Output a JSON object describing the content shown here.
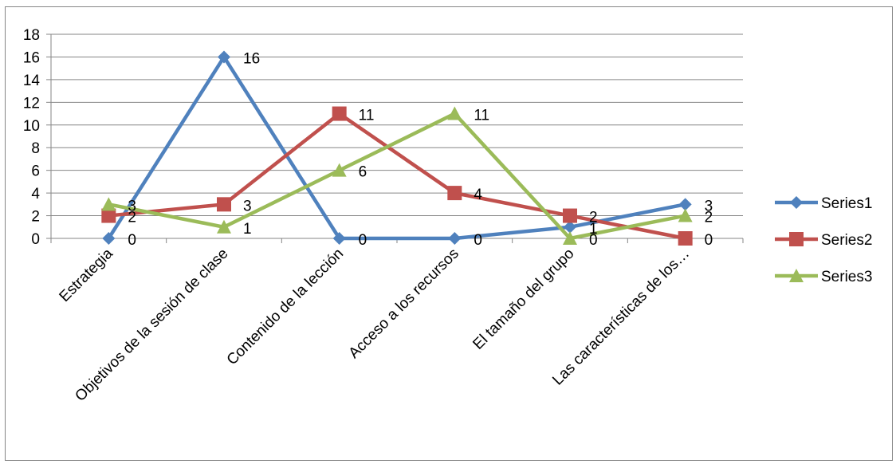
{
  "chart_data": {
    "type": "line",
    "title": "",
    "xlabel": "",
    "ylabel": "",
    "categories": [
      "Estrategia",
      "Objetivos de la sesión de clase",
      "Contenido de la lección",
      "Acceso a los recursos",
      "El tamaño del grupo",
      "Las características de los…"
    ],
    "ylim": [
      0,
      18
    ],
    "yticks": [
      "0",
      "2",
      "4",
      "6",
      "8",
      "10",
      "12",
      "14",
      "16",
      "18"
    ],
    "grid": true,
    "legend_position": "right",
    "series": [
      {
        "name": "Series1",
        "values": [
          0,
          16,
          0,
          0,
          1,
          3
        ],
        "color": "#4f81bd",
        "marker": "diamond"
      },
      {
        "name": "Series2",
        "values": [
          2,
          3,
          11,
          4,
          2,
          0
        ],
        "color": "#c0504d",
        "marker": "square"
      },
      {
        "name": "Series3",
        "values": [
          3,
          1,
          6,
          11,
          0,
          2
        ],
        "color": "#9bbb59",
        "marker": "triangle"
      }
    ]
  }
}
